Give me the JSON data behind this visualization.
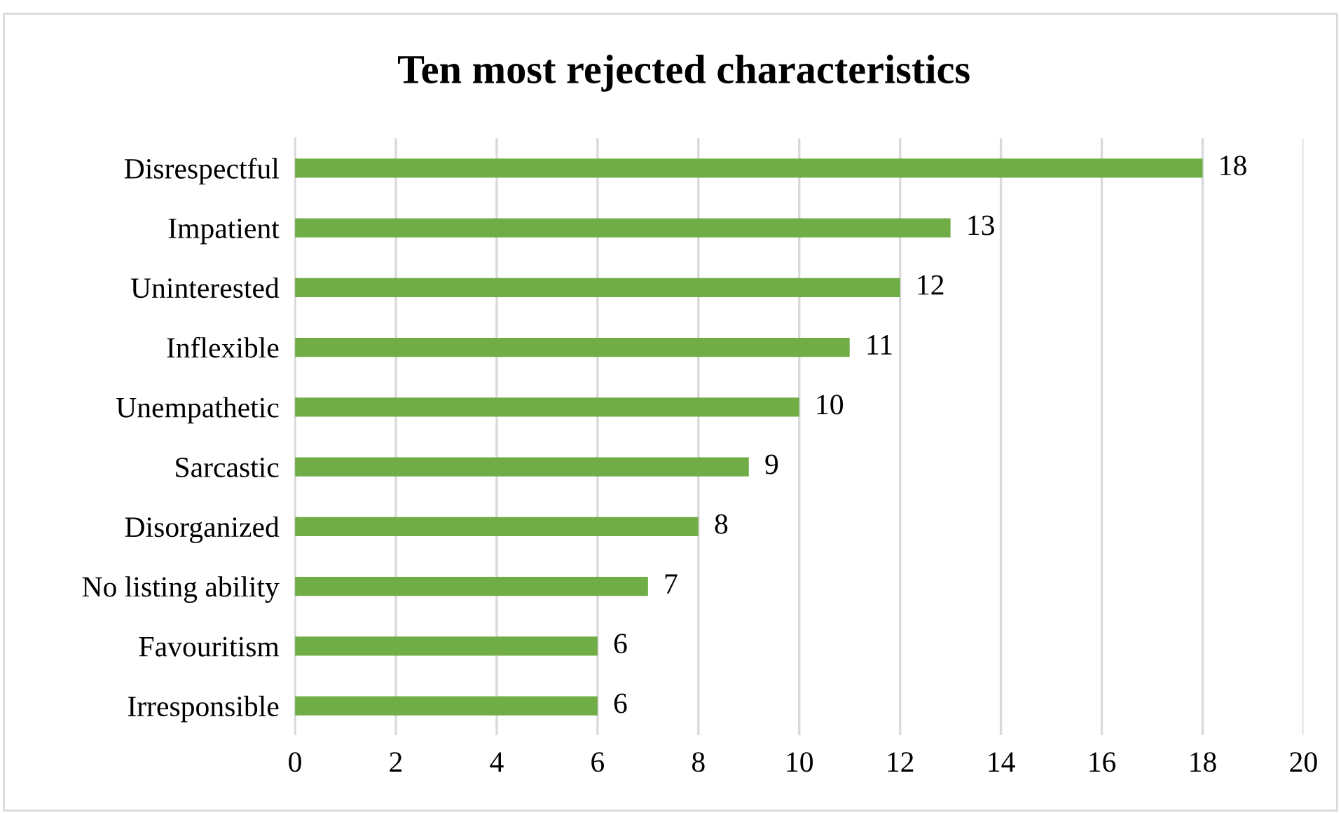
{
  "chart_data": {
    "type": "bar",
    "orientation": "horizontal",
    "title": "Ten most rejected characteristics",
    "categories": [
      "Disrespectful",
      "Impatient",
      "Uninterested",
      "Inflexible",
      "Unempathetic",
      "Sarcastic",
      "Disorganized",
      "No listing ability",
      "Favouritism",
      "Irresponsible"
    ],
    "values": [
      18,
      13,
      12,
      11,
      10,
      9,
      8,
      7,
      6,
      6
    ],
    "color": "#70ad47",
    "xlim": [
      0,
      20
    ],
    "xticks": [
      0,
      2,
      4,
      6,
      8,
      10,
      12,
      14,
      16,
      18,
      20
    ],
    "grid": "x",
    "data_labels": true
  }
}
